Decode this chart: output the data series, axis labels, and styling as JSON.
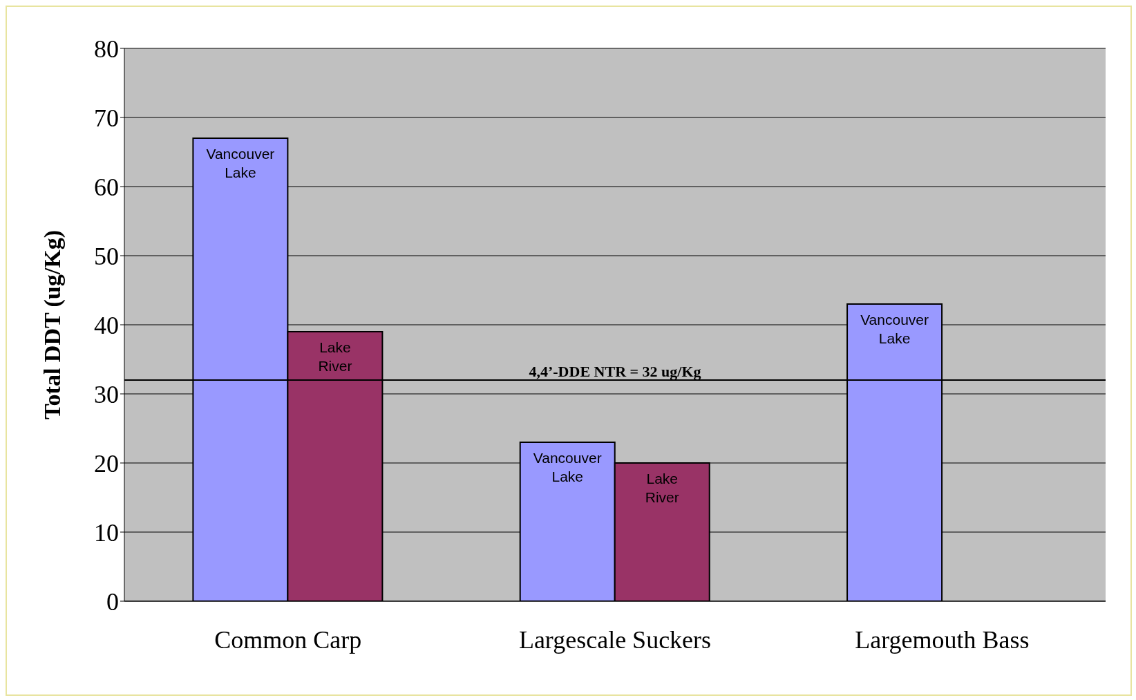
{
  "chart_data": {
    "type": "bar",
    "ylabel": "Total DDT (ug/Kg)",
    "categories": [
      "Common Carp",
      "Largescale Suckers",
      "Largemouth Bass"
    ],
    "series": [
      {
        "name": "Vancouver Lake",
        "color": "#9999ff",
        "values": [
          67,
          23,
          43
        ]
      },
      {
        "name": "Lake River",
        "color": "#993366",
        "values": [
          39,
          20,
          null
        ]
      }
    ],
    "ylim": [
      0,
      80
    ],
    "yticks": [
      0,
      10,
      20,
      30,
      40,
      50,
      60,
      70,
      80
    ],
    "grid": "y",
    "legend": false,
    "ref_lines": [
      {
        "axis": "y",
        "value": 32,
        "label": "4,4’-DDE NTR = 32 ug/Kg",
        "color": "#000000"
      }
    ]
  }
}
